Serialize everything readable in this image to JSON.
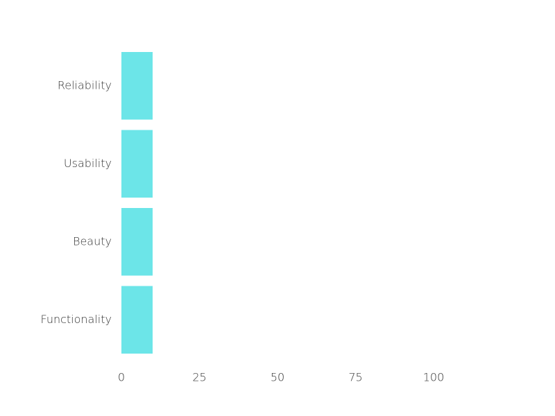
{
  "chart_data": {
    "type": "bar",
    "orientation": "horizontal",
    "title": "",
    "xlabel": "",
    "ylabel": "",
    "categories": [
      "Reliability",
      "Usability",
      "Beauty",
      "Functionality"
    ],
    "values": [
      10,
      10,
      10,
      10
    ],
    "xlim": [
      0,
      100
    ],
    "x_ticks": [
      "0",
      "25",
      "50",
      "75",
      "100"
    ],
    "grid": false,
    "legend": "none",
    "bar_color": "#6ce5e8"
  }
}
